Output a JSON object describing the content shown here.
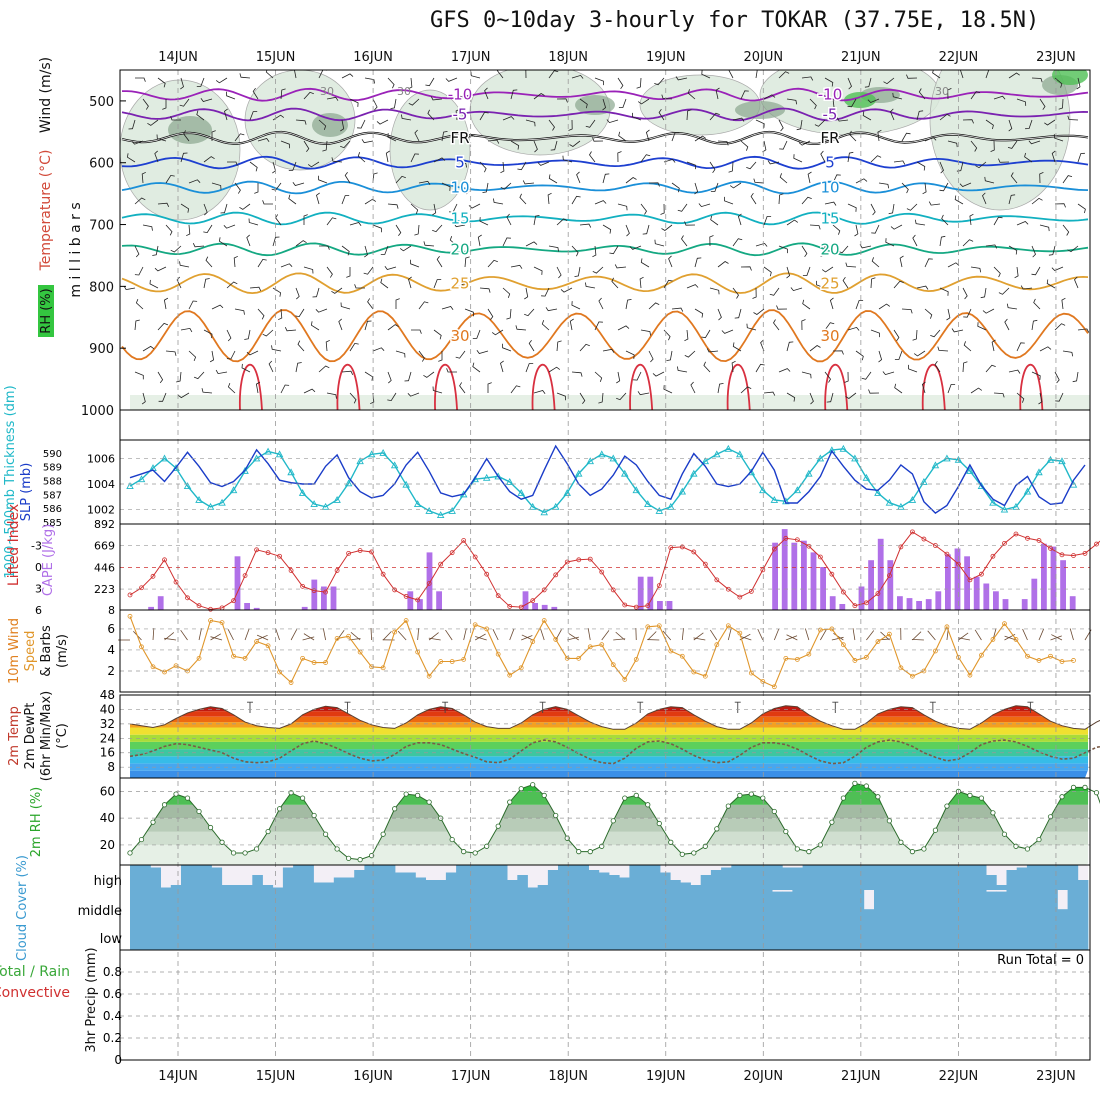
{
  "title": "GFS 0~10day 3-hourly for TOKAR (37.75E, 18.5N)",
  "chart_data": [
    {
      "type": "contour",
      "panel": "upper-air",
      "ylabel": "(millibars)",
      "ylabel_text": "m i l l i b a r s",
      "legend_labels": [
        "Wind (m/s)",
        "Temperature (°C)",
        "RH (%)"
      ],
      "x_days": [
        "14JUN",
        "15JUN",
        "16JUN",
        "17JUN",
        "18JUN",
        "19JUN",
        "20JUN",
        "21JUN",
        "22JUN",
        "23JUN"
      ],
      "y_ticks": [
        500,
        600,
        700,
        800,
        900,
        1000
      ],
      "isotherms": [
        {
          "label": "-10",
          "level": 490,
          "color": "#9a22b8"
        },
        {
          "label": "-5",
          "level": 522,
          "color": "#7a22b0"
        },
        {
          "label": "FR",
          "level": 560,
          "color": "#111111"
        },
        {
          "label": "5",
          "level": 600,
          "color": "#1d3fd0"
        },
        {
          "label": "10",
          "level": 640,
          "color": "#1a8fd8"
        },
        {
          "label": "15",
          "level": 690,
          "color": "#12b0c0"
        },
        {
          "label": "20",
          "level": 740,
          "color": "#14a882"
        },
        {
          "label": "25",
          "level": 795,
          "color": "#e0a030"
        },
        {
          "label": "30",
          "level": 880,
          "color": "#e07820"
        }
      ],
      "rh_labels": [
        "30"
      ]
    },
    {
      "type": "line",
      "panel": "thickness-slp",
      "ylabel_left": "1000~500mb Thickness (dm)",
      "ylabel_right": "SLP (mb)",
      "left_ticks": [
        585,
        586,
        587,
        588,
        589,
        590
      ],
      "left_range": [
        585,
        590.5
      ],
      "right_ticks": [
        1002,
        1004,
        1006
      ],
      "right_range": [
        1001,
        1007
      ],
      "series": [
        {
          "role": "thickness",
          "color": "#20b8c8",
          "values": [
            587.6,
            588.1,
            588.9,
            589.6,
            588.9,
            587.6,
            586.6,
            586.1,
            586.4,
            587.3,
            588.7,
            589.6,
            590.1,
            589.9,
            588.6,
            587.1,
            586.3,
            586.1,
            586.6,
            587.8,
            589.4,
            589.9,
            590.0,
            589.1,
            587.7,
            586.3,
            585.8,
            585.5,
            585.8,
            587.0,
            588.1,
            588.2,
            588.3,
            587.9,
            587.1,
            586.1,
            585.7,
            586.1,
            587.1,
            588.5,
            589.4,
            589.9,
            589.6,
            588.5,
            587.3,
            586.3,
            585.8,
            586.1,
            587.2,
            588.5,
            589.4,
            589.9,
            590.3,
            589.9,
            588.6,
            587.3,
            586.6,
            586.5,
            587.3,
            588.5,
            589.6,
            590.2,
            590.3,
            589.6,
            588.2,
            587.1,
            586.4,
            586.1,
            586.6,
            587.9,
            589.1,
            589.6,
            589.5,
            588.7,
            587.6,
            586.4,
            585.9,
            586.1,
            587.2,
            588.6,
            589.5,
            589.4,
            587.7
          ]
        },
        {
          "role": "slp",
          "color": "#1a3cc8",
          "values": [
            1004.5,
            1004.8,
            1005.1,
            1004.2,
            1005.3,
            1006.5,
            1005.4,
            1004.1,
            1003.8,
            1004.2,
            1005.1,
            1006.7,
            1005.6,
            1004.3,
            1004.1,
            1004.0,
            1004.0,
            1005.4,
            1006.3,
            1004.5,
            1003.4,
            1002.9,
            1003.1,
            1004.0,
            1005.5,
            1006.5,
            1005.0,
            1003.3,
            1003.0,
            1003.2,
            1004.5,
            1006.0,
            1004.6,
            1003.4,
            1002.8,
            1003.1,
            1005.1,
            1007.0,
            1005.6,
            1004.0,
            1003.1,
            1003.6,
            1004.7,
            1006.2,
            1005.5,
            1004.2,
            1003.1,
            1002.8,
            1004.8,
            1006.4,
            1005.4,
            1004.0,
            1003.8,
            1004.0,
            1005.0,
            1006.5,
            1005.1,
            1002.5,
            1002.5,
            1003.4,
            1004.6,
            1006.6,
            1005.4,
            1004.3,
            1003.6,
            1003.5,
            1004.3,
            1005.5,
            1004.8,
            1002.6,
            1001.7,
            1002.3,
            1003.8,
            1005.5,
            1003.9,
            1002.8,
            1002.3,
            1003.9,
            1004.6,
            1003.0,
            1002.4,
            1002.5,
            1004.3,
            1005.5
          ]
        }
      ]
    },
    {
      "type": "bar+line",
      "panel": "cape-li",
      "ylabel_left": "Lifted Index",
      "ylabel_right": "CAPE (J/kg)",
      "left_ticks": [
        -3,
        0,
        3,
        6
      ],
      "left_range": [
        6,
        -6
      ],
      "right_ticks": [
        8,
        223,
        446,
        669,
        892
      ],
      "right_range": [
        8,
        892
      ],
      "cape": [
        0,
        0,
        40,
        150,
        0,
        0,
        0,
        0,
        0,
        0,
        0,
        560,
        80,
        30,
        0,
        0,
        0,
        0,
        40,
        320,
        250,
        250,
        0,
        0,
        0,
        0,
        0,
        0,
        0,
        200,
        120,
        600,
        200,
        0,
        0,
        0,
        0,
        0,
        0,
        0,
        0,
        200,
        80,
        60,
        40,
        0,
        0,
        0,
        0,
        0,
        0,
        0,
        0,
        350,
        350,
        100,
        100,
        0,
        0,
        0,
        0,
        0,
        0,
        0,
        0,
        0,
        0,
        700,
        840,
        700,
        720,
        600,
        450,
        150,
        70,
        0,
        250,
        520,
        740,
        520,
        150,
        130,
        100,
        120,
        200,
        580,
        640,
        560,
        350,
        280,
        200,
        120,
        0,
        120,
        330,
        690,
        660,
        520,
        150,
        0
      ],
      "lifted_index": [
        3.9,
        2.9,
        1.3,
        -1.0,
        2.1,
        4.3,
        5.4,
        5.9,
        5.7,
        4.7,
        1.2,
        -2.4,
        -2.0,
        -1.5,
        0.5,
        2.7,
        3.3,
        3.5,
        0.5,
        -1.9,
        -2.3,
        -2.1,
        1.0,
        3.2,
        4.1,
        4.6,
        2.3,
        -0.4,
        -2.0,
        -3.7,
        -1.4,
        1.0,
        4.0,
        5.5,
        5.6,
        4.7,
        3.2,
        1.1,
        -0.7,
        -1.0,
        -1.1,
        0.7,
        3.2,
        5.3,
        5.6,
        5.4,
        2.6,
        -2.7,
        -2.8,
        -2.1,
        -0.4,
        1.8,
        3.1,
        4.2,
        3.4,
        0.4,
        -2.5,
        -4.0,
        -3.8,
        -2.9,
        -1.4,
        1.0,
        3.5,
        5.4,
        5.0,
        3.7,
        1.2,
        -2.8,
        -4.9,
        -3.9,
        -3.0,
        -1.8,
        -0.4,
        1.8,
        1.0,
        -1.5,
        -3.3,
        -4.6,
        -4.0,
        -3.7,
        -2.6,
        -1.7,
        -1.6,
        -1.9,
        -3.2,
        -4.5,
        -4.3,
        -3.2,
        -1.7,
        -0.9,
        -1.2,
        -3.5,
        -4.6,
        -4.1,
        -1.8,
        -0.1
      ]
    },
    {
      "type": "line",
      "panel": "wind10m",
      "ylabel": "10m Wind Speed & Barbs (m/s)",
      "ylabel_parts": [
        "10m Wind",
        "Speed",
        "& Barbs",
        "(m/s)"
      ],
      "y_ticks": [
        2,
        4,
        6
      ],
      "y_range": [
        0,
        7.8
      ],
      "values": [
        7.2,
        4.3,
        2.4,
        1.9,
        2.5,
        2.0,
        3.2,
        6.8,
        6.6,
        3.4,
        3.2,
        4.8,
        4.4,
        1.9,
        0.9,
        3.2,
        2.8,
        2.8,
        5.1,
        5.3,
        3.8,
        2.4,
        2.3,
        5.7,
        6.8,
        3.8,
        1.5,
        2.9,
        2.9,
        3.1,
        6.4,
        6.0,
        3.6,
        1.6,
        2.3,
        4.8,
        6.8,
        5.0,
        3.2,
        3.2,
        4.3,
        4.5,
        2.6,
        1.2,
        3.1,
        6.2,
        6.3,
        3.9,
        3.4,
        1.9,
        1.5,
        4.5,
        6.3,
        5.6,
        1.8,
        1.0,
        0.5,
        3.2,
        3.1,
        3.6,
        5.9,
        6.0,
        4.5,
        3.0,
        3.3,
        4.8,
        5.5,
        2.3,
        1.5,
        2.0,
        3.9,
        6.2,
        3.3,
        1.6,
        3.5,
        5.0,
        6.5,
        5.0,
        3.4,
        3.0,
        3.4,
        2.9,
        3.0
      ]
    },
    {
      "type": "area",
      "panel": "temp2m",
      "ylabel": "2m Temp 2m DewPt (6hr Min/Max) (°C)",
      "ylabel_parts": [
        "2m Temp",
        "2m DewPt",
        "(6hr Min/Max)",
        "(°C)"
      ],
      "y_ticks": [
        8,
        16,
        24,
        32,
        40,
        48
      ],
      "y_range": [
        2,
        48
      ],
      "temperature": [
        32.0,
        31.0,
        30.0,
        31.5,
        35.0,
        38.0,
        40.0,
        41.5,
        40.5,
        37.0,
        33.0,
        31.0,
        30.0,
        29.5,
        32.0,
        37.0,
        40.0,
        41.8,
        41.0,
        37.5,
        34.0,
        31.5,
        30.0,
        29.5,
        32.5,
        37.0,
        40.0,
        41.5,
        40.5,
        37.0,
        33.0,
        30.5,
        29.5,
        29.5,
        32.5,
        37.0,
        40.0,
        41.5,
        40.0,
        36.5,
        33.0,
        30.5,
        29.0,
        29.0,
        32.5,
        37.5,
        40.0,
        41.5,
        41.0,
        37.0,
        33.5,
        30.5,
        29.0,
        29.0,
        32.5,
        37.5,
        40.5,
        42.0,
        41.5,
        37.0,
        33.5,
        31.0,
        29.0,
        29.0,
        32.5,
        37.5,
        40.0,
        41.5,
        41.0,
        37.0,
        33.5,
        31.0,
        29.5,
        29.0,
        32.5,
        37.0,
        40.0,
        42.0,
        41.5,
        37.5,
        33.5,
        31.0,
        29.5,
        29.0,
        33.0,
        36.0
      ],
      "dewpoint": [
        14.0,
        15.0,
        17.0,
        19.5,
        21.0,
        20.5,
        19.0,
        17.5,
        16.0,
        13.0,
        11.0,
        10.5,
        11.0,
        13.0,
        17.0,
        21.0,
        22.5,
        21.0,
        18.5,
        15.5,
        13.0,
        11.5,
        12.0,
        15.0,
        19.5,
        21.5,
        21.5,
        20.5,
        18.0,
        15.5,
        13.5,
        11.0,
        10.5,
        12.5,
        17.0,
        21.5,
        23.0,
        22.0,
        19.0,
        15.5,
        12.5,
        10.5,
        10.0,
        13.0,
        18.5,
        22.0,
        22.5,
        21.0,
        18.0,
        14.5,
        12.0,
        10.5,
        11.0,
        14.5,
        19.0,
        21.5,
        21.5,
        20.5,
        18.0,
        14.5,
        11.5,
        10.0,
        10.5,
        14.0,
        19.0,
        22.0,
        23.0,
        22.0,
        19.5,
        16.0,
        13.5,
        11.5,
        12.5,
        16.0,
        20.5,
        22.5,
        23.0,
        22.0,
        19.5,
        16.5,
        14.0,
        12.5,
        13.0,
        16.0,
        19.0,
        20.0
      ]
    },
    {
      "type": "area",
      "panel": "rh2m",
      "ylabel": "2m RH (%)",
      "y_ticks": [
        20,
        40,
        60
      ],
      "y_range": [
        5,
        70
      ],
      "values": [
        14,
        24,
        37,
        50,
        58,
        55,
        45,
        33,
        22,
        14,
        14,
        17,
        30,
        47,
        59,
        55,
        42,
        28,
        17,
        10,
        9,
        12,
        28,
        47,
        58,
        57,
        52,
        40,
        24,
        15,
        14,
        19,
        34,
        52,
        62,
        65,
        57,
        42,
        25,
        15,
        15,
        19,
        38,
        55,
        57,
        50,
        36,
        22,
        13,
        14,
        19,
        32,
        49,
        57,
        58,
        55,
        45,
        30,
        17,
        15,
        20,
        37,
        55,
        66,
        64,
        56,
        38,
        22,
        15,
        17,
        31,
        49,
        60,
        57,
        55,
        44,
        28,
        19,
        17,
        24,
        41,
        56,
        63,
        63,
        59,
        35,
        18
      ]
    },
    {
      "type": "heatmap",
      "panel": "cloud",
      "ylabel": "Cloud Cover (%)",
      "layers": [
        "high",
        "middle",
        "low"
      ],
      "high_cover": [
        100,
        100,
        90,
        10,
        20,
        100,
        100,
        100,
        90,
        20,
        20,
        20,
        60,
        20,
        10,
        90,
        100,
        100,
        30,
        30,
        50,
        50,
        80,
        100,
        100,
        100,
        70,
        70,
        50,
        40,
        40,
        70,
        100,
        100,
        100,
        100,
        100,
        40,
        60,
        10,
        20,
        80,
        100,
        100,
        100,
        80,
        70,
        60,
        50,
        100,
        100,
        100,
        70,
        40,
        30,
        20,
        60,
        80,
        90,
        100,
        100,
        100,
        100,
        100,
        90,
        90,
        100,
        100,
        100,
        100,
        100,
        100,
        100,
        100,
        100,
        100,
        100,
        100,
        100,
        100,
        100,
        100,
        100,
        100,
        60,
        20,
        80,
        90,
        100,
        100,
        100,
        100,
        100,
        40
      ],
      "middle_cover": [
        100,
        100,
        100,
        100,
        100,
        100,
        100,
        100,
        100,
        100,
        100,
        100,
        100,
        100,
        100,
        100,
        100,
        100,
        100,
        100,
        100,
        100,
        100,
        100,
        100,
        100,
        100,
        100,
        100,
        100,
        100,
        100,
        100,
        100,
        100,
        100,
        100,
        100,
        100,
        100,
        100,
        100,
        100,
        100,
        100,
        100,
        100,
        100,
        100,
        100,
        100,
        100,
        100,
        100,
        100,
        100,
        100,
        100,
        100,
        100,
        100,
        100,
        100,
        95,
        95,
        100,
        100,
        100,
        100,
        100,
        100,
        100,
        40,
        100,
        100,
        100,
        100,
        100,
        100,
        100,
        100,
        100,
        100,
        100,
        95,
        95,
        100,
        100,
        100,
        100,
        100,
        40,
        100,
        100
      ],
      "low_cover": [
        100,
        100,
        100,
        100,
        100,
        100,
        100,
        100,
        100,
        100,
        100,
        100,
        100,
        100,
        100,
        100,
        100,
        100,
        100,
        100,
        100,
        100,
        100,
        100,
        100,
        100,
        100,
        100,
        100,
        100,
        100,
        100,
        100,
        100,
        100,
        100,
        100,
        100,
        100,
        100,
        100,
        100,
        100,
        100,
        100,
        100,
        100,
        100,
        100,
        100,
        100,
        100,
        100,
        100,
        100,
        100,
        100,
        100,
        100,
        100,
        100,
        100,
        100,
        100,
        100,
        100,
        100,
        100,
        100,
        100,
        100,
        100,
        100,
        100,
        100,
        100,
        100,
        100,
        100,
        100,
        100,
        100,
        100,
        100,
        100,
        100,
        100,
        100,
        100,
        100,
        100,
        100,
        100,
        100
      ]
    },
    {
      "type": "bar",
      "panel": "precip",
      "ylabel": "3hr Precip (mm)",
      "legend_labels": [
        "Total / Rain",
        "Convective"
      ],
      "y_ticks": [
        0,
        0.2,
        0.4,
        0.6,
        0.8
      ],
      "y_range": [
        0,
        1
      ],
      "annotation": "Run Total = 0",
      "values": []
    }
  ],
  "colors": {
    "grid": "#999999",
    "thickness": "#20b8c8",
    "slp": "#1a3cc8",
    "lifted_index": "#d03030",
    "cape": "#b070e8",
    "wind": "#e0962a",
    "dewpoint": "#777777",
    "rh": "#3aa83a",
    "cloud": "#6aaed6"
  }
}
